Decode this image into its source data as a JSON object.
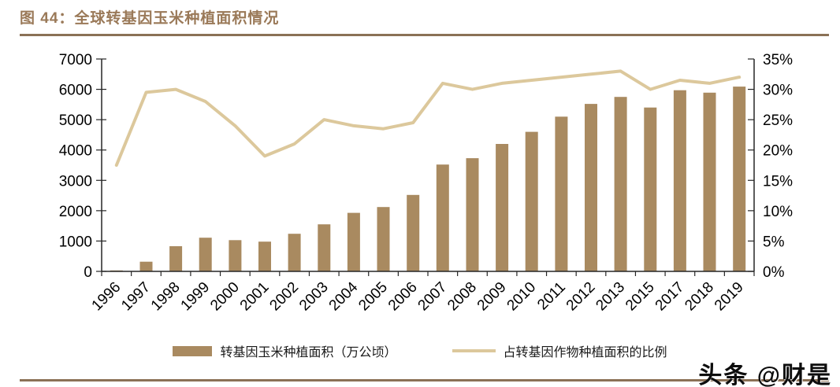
{
  "header": {
    "title": "图 44：全球转基因玉米种植面积情况"
  },
  "colors": {
    "accent_brown": "#8B7156",
    "title_text": "#9A7958",
    "bar_series": "#A98A60",
    "line_series": "#DCC89C",
    "axis_line": "#262626",
    "axis_text": "#000000"
  },
  "legend": {
    "items": [
      {
        "label": "转基因玉米种植面积（万公顷）",
        "swatch": "bar"
      },
      {
        "label": "占转基因作物种植面积的比例",
        "swatch": "line"
      }
    ]
  },
  "watermark": {
    "text": "头条 @财是"
  },
  "chart_data": {
    "type": "bar",
    "subtype": "bar+line combo, dual axis",
    "title": "全球转基因玉米种植面积情况",
    "categories": [
      "1996",
      "1997",
      "1998",
      "1999",
      "2000",
      "2001",
      "2002",
      "2003",
      "2004",
      "2005",
      "2006",
      "2007",
      "2008",
      "2009",
      "2010",
      "2011",
      "2012",
      "2013",
      "2015",
      "2017",
      "2018",
      "2019"
    ],
    "series": [
      {
        "name": "转基因玉米种植面积（万公顷）",
        "type": "bar",
        "axis": "left",
        "values": [
          30,
          320,
          830,
          1110,
          1030,
          980,
          1240,
          1550,
          1930,
          2120,
          2520,
          3520,
          3730,
          4200,
          4600,
          5100,
          5520,
          5750,
          5400,
          5970,
          5890,
          6090
        ]
      },
      {
        "name": "占转基因作物种植面积的比例",
        "type": "line",
        "axis": "right",
        "values": [
          17.5,
          29.5,
          30,
          28,
          24,
          19,
          21,
          25,
          24,
          23.5,
          24.5,
          31,
          30,
          31,
          31.5,
          32,
          32.5,
          33,
          30,
          31.5,
          31,
          32
        ]
      }
    ],
    "left_axis": {
      "min": 0,
      "max": 7000,
      "tick_step": 1000,
      "suffix": ""
    },
    "right_axis": {
      "min": 0,
      "max": 35,
      "tick_step": 5,
      "suffix": "%"
    },
    "grid": false,
    "legend_position": "bottom",
    "x_label_rotation": -45
  }
}
